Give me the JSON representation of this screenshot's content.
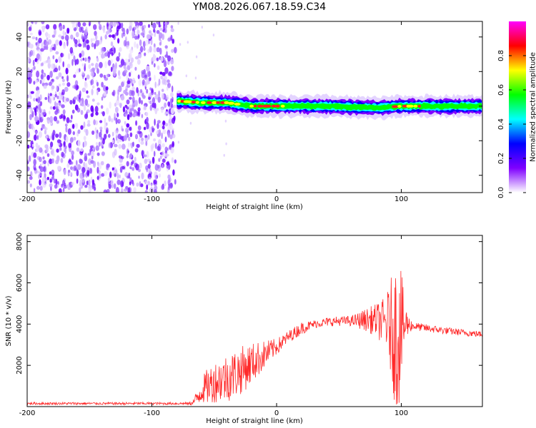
{
  "chart_data": [
    {
      "type": "heatmap",
      "title": "YM08.2026.067.18.59.C34",
      "xlabel": "Height of straight line (km)",
      "ylabel": "Frequency (Hz)",
      "xlim": [
        -200,
        165
      ],
      "ylim": [
        -50,
        49
      ],
      "x_ticks": [
        -200,
        -100,
        0,
        100
      ],
      "x_tick_labels": [
        "-200",
        "-100",
        "0",
        "100"
      ],
      "y_ticks": [
        -40,
        -20,
        0,
        20,
        40
      ],
      "y_tick_labels": [
        "-40",
        "-20",
        "0",
        "20",
        "40"
      ],
      "noise_region_x": [
        -200,
        -80
      ],
      "ridge": {
        "x_start": -80,
        "x_end": 165,
        "center_hz": [
          [
            -80,
            3
          ],
          [
            -60,
            2
          ],
          [
            -40,
            2
          ],
          [
            -20,
            0
          ],
          [
            0,
            0
          ],
          [
            40,
            0
          ],
          [
            80,
            -1
          ],
          [
            100,
            0
          ],
          [
            120,
            0
          ],
          [
            165,
            0
          ]
        ],
        "peak_segments": [
          [
            -78,
            -30
          ],
          [
            -20,
            5
          ],
          [
            95,
            115
          ]
        ]
      },
      "colorbar": {
        "label": "Normalized spectral amplitude",
        "range": [
          0,
          1
        ],
        "ticks": [
          0.0,
          0.2,
          0.4,
          0.6,
          0.8
        ],
        "tick_labels": [
          "0.0",
          "0.2",
          "0.4",
          "0.6",
          "0.8"
        ],
        "colors": [
          "#ffffff",
          "#7f00ff",
          "#0000ff",
          "#00ffff",
          "#00ff00",
          "#ffff00",
          "#ff0000",
          "#ff00ff"
        ]
      }
    },
    {
      "type": "line",
      "xlabel": "Height of straight line (km)",
      "ylabel": "SNR (10 * v/v)",
      "xlim": [
        -200,
        165
      ],
      "ylim": [
        0,
        8300
      ],
      "x_ticks": [
        -200,
        -100,
        0,
        100
      ],
      "x_tick_labels": [
        "-200",
        "-100",
        "0",
        "100"
      ],
      "y_ticks": [
        2000,
        4000,
        6000,
        8000
      ],
      "y_tick_labels": [
        "2000",
        "4000",
        "6000",
        "8000"
      ],
      "line_color": "#ff2a2a",
      "envelope": {
        "x": [
          -200,
          -70,
          -65,
          -60,
          -50,
          -40,
          -30,
          -20,
          -10,
          0,
          10,
          20,
          30,
          40,
          50,
          60,
          70,
          80,
          90,
          95,
          100,
          105,
          110,
          120,
          140,
          165
        ],
        "y": [
          150,
          150,
          300,
          800,
          1200,
          1400,
          1700,
          2100,
          2500,
          2900,
          3400,
          3800,
          4000,
          4100,
          4150,
          4150,
          4200,
          4200,
          4000,
          3500,
          3800,
          4000,
          3900,
          3800,
          3650,
          3500
        ]
      },
      "noise_amplitude": {
        "x": [
          -200,
          -70,
          -65,
          -55,
          -40,
          -30,
          -20,
          -10,
          0,
          10,
          20,
          30,
          60,
          70,
          80,
          88,
          93,
          96,
          99,
          102,
          106,
          110,
          165
        ],
        "y": [
          60,
          60,
          350,
          900,
          1200,
          1200,
          1000,
          700,
          400,
          300,
          300,
          200,
          250,
          500,
          800,
          1300,
          2800,
          3800,
          3600,
          1500,
          400,
          200,
          150
        ]
      }
    }
  ]
}
